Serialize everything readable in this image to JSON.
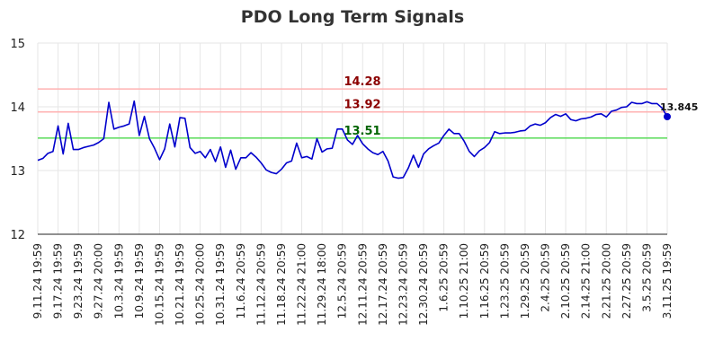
{
  "chart_data": {
    "type": "line",
    "title": "PDO Long Term Signals",
    "xlabel": "",
    "ylabel": "",
    "ylim": [
      12,
      15
    ],
    "yticks": [
      12,
      13,
      14,
      15
    ],
    "grid": true,
    "x_tick_labels": [
      "9.11.24 19:59",
      "9.17.24 19:59",
      "9.23.24 19:59",
      "9.27.24 20:00",
      "10.3.24 19:59",
      "10.9.24 19:59",
      "10.15.24 19:59",
      "10.21.24 19:59",
      "10.25.24 20:00",
      "10.31.24 19:59",
      "11.6.24 20:59",
      "11.12.24 20:59",
      "11.18.24 20:59",
      "11.22.24 21:00",
      "11.29.24 18:00",
      "12.5.24 20:59",
      "12.11.24 20:59",
      "12.17.24 20:59",
      "12.23.24 20:59",
      "12.30.24 20:59",
      "1.6.25 20:59",
      "1.10.25 21:00",
      "1.16.25 20:59",
      "1.23.25 20:59",
      "1.29.25 20:59",
      "2.4.25 20:59",
      "2.10.25 20:59",
      "2.14.25 21:00",
      "2.21.25 20:00",
      "2.27.25 20:59",
      "3.5.25 20:59",
      "3.11.25 19:59"
    ],
    "series": [
      {
        "color": "#0000cc",
        "values": [
          13.16,
          13.19,
          13.27,
          13.3,
          13.7,
          13.26,
          13.74,
          13.33,
          13.33,
          13.36,
          13.38,
          13.4,
          13.44,
          13.5,
          14.07,
          13.65,
          13.68,
          13.7,
          13.73,
          14.09,
          13.55,
          13.85,
          13.5,
          13.35,
          13.17,
          13.34,
          13.73,
          13.37,
          13.83,
          13.82,
          13.36,
          13.27,
          13.3,
          13.2,
          13.33,
          13.14,
          13.37,
          13.05,
          13.32,
          13.02,
          13.2,
          13.2,
          13.28,
          13.21,
          13.12,
          13.01,
          12.97,
          12.95,
          13.02,
          13.12,
          13.15,
          13.43,
          13.2,
          13.22,
          13.18,
          13.5,
          13.29,
          13.34,
          13.35,
          13.65,
          13.65,
          13.48,
          13.41,
          13.55,
          13.42,
          13.34,
          13.28,
          13.25,
          13.3,
          13.15,
          12.9,
          12.88,
          12.89,
          13.04,
          13.24,
          13.05,
          13.26,
          13.34,
          13.39,
          13.43,
          13.55,
          13.65,
          13.58,
          13.58,
          13.46,
          13.3,
          13.22,
          13.31,
          13.36,
          13.44,
          13.61,
          13.58,
          13.59,
          13.59,
          13.6,
          13.62,
          13.63,
          13.7,
          13.73,
          13.71,
          13.75,
          13.83,
          13.88,
          13.85,
          13.89,
          13.8,
          13.78,
          13.81,
          13.82,
          13.84,
          13.88,
          13.89,
          13.84,
          13.93,
          13.95,
          13.99,
          14.0,
          14.07,
          14.05,
          14.05,
          14.08,
          14.05,
          14.05,
          13.98,
          13.845
        ]
      }
    ],
    "reference_lines": [
      {
        "value": 14.28,
        "label": "14.28",
        "color": "#ffb3b3",
        "label_color": "#8b0000"
      },
      {
        "value": 13.92,
        "label": "13.92",
        "color": "#ffb3b3",
        "label_color": "#8b0000"
      },
      {
        "value": 13.51,
        "label": "13.51",
        "color": "#66dd66",
        "label_color": "#006400"
      }
    ],
    "last_value": {
      "value": 13.845,
      "label": "13.845",
      "color": "#0000cc"
    },
    "legend": "none"
  }
}
